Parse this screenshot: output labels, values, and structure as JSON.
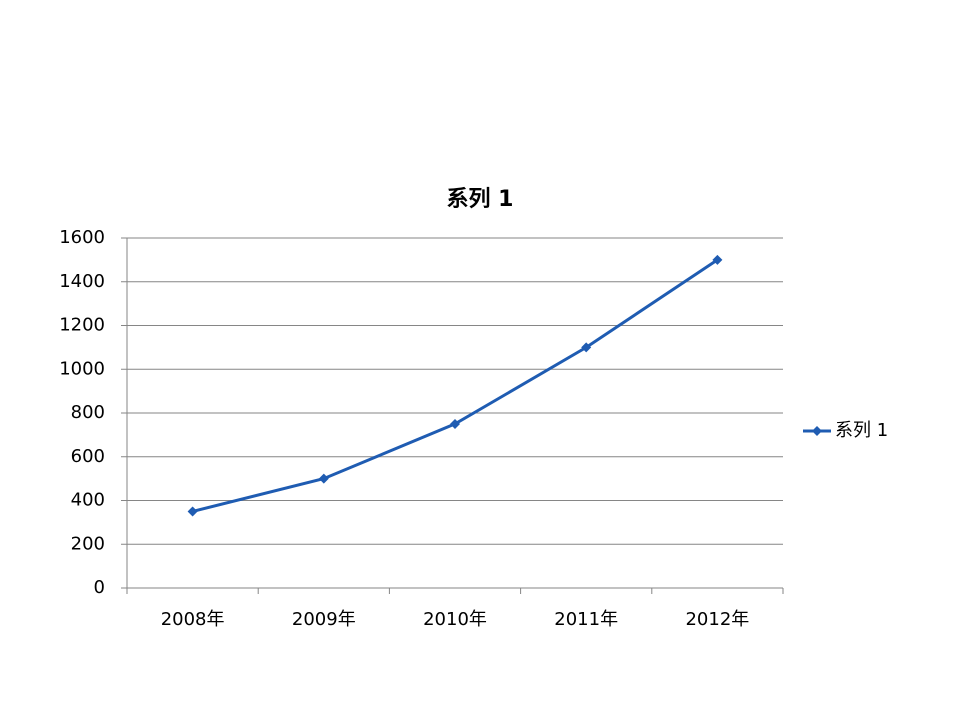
{
  "chart_data": {
    "type": "line",
    "title": "系列 1",
    "categories": [
      "2008年",
      "2009年",
      "2010年",
      "2011年",
      "2012年"
    ],
    "series": [
      {
        "name": "系列 1",
        "color": "#1f5cb2",
        "values": [
          350,
          500,
          750,
          1100,
          1500
        ]
      }
    ],
    "ylim": [
      0,
      1600
    ],
    "yticks": [
      0,
      200,
      400,
      600,
      800,
      1000,
      1200,
      1400,
      1600
    ],
    "grid": true,
    "legend": "right"
  }
}
